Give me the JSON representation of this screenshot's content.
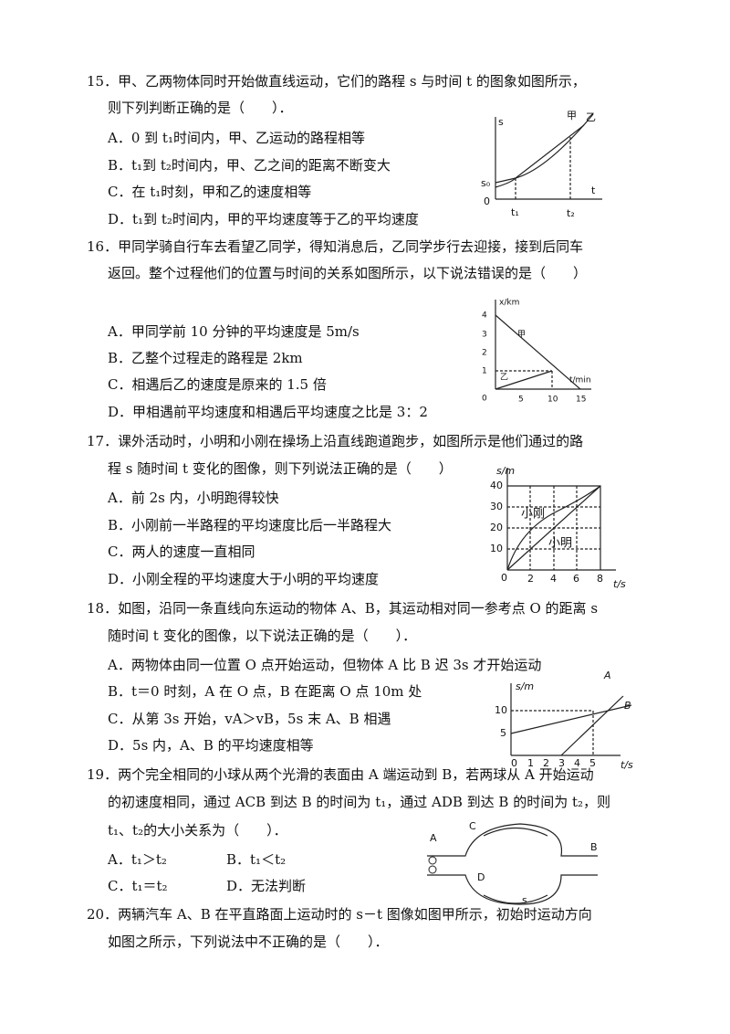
{
  "questions": [
    {
      "lines": [
        "15．甲、乙两物体同时开始做直线运动，它们的路程 s 与时间 t 的图象如图所示，",
        "则下列判断正确的是（　　）．"
      ],
      "options": [
        "A．0 到 t₁时间内，甲、乙运动的路程相等",
        "B．t₁到 t₂时间内，甲、乙之间的距离不断变大",
        "C．在 t₁时刻，甲和乙的速度相等",
        "D．t₁到 t₂时间内，甲的平均速度等于乙的平均速度"
      ],
      "figure": {
        "s": "s",
        "jia": "甲",
        "yi": "乙",
        "s0": "s₀",
        "origin": "0",
        "t": "t",
        "t1": "t₁",
        "t2": "t₂"
      }
    },
    {
      "lines": [
        "16．甲同学骑自行车去看望乙同学，得知消息后，乙同学步行去迎接，接到后同车",
        "返回。整个过程他们的位置与时间的关系如图所示，以下说法错误的是（　　）"
      ],
      "options": [
        "A．甲同学前 10 分钟的平均速度是 5m/s",
        "B．乙整个过程走的路程是 2km",
        "C．相遇后乙的速度是原来的 1.5 倍",
        "D．甲相遇前平均速度和相遇后平均速度之比是 3：2"
      ],
      "figure": {
        "ylabel": "x/km",
        "yticks": [
          "4",
          "3",
          "2",
          "1",
          "0"
        ],
        "xticks": [
          "5",
          "10",
          "15"
        ],
        "xlabel": "t/min",
        "jia": "甲",
        "yi": "乙"
      }
    },
    {
      "lines": [
        "17．课外活动时，小明和小刚在操场上沿直线跑道跑步，如图所示是他们通过的路",
        "程 s 随时间 t 变化的图像，则下列说法正确的是（　　）"
      ],
      "options": [
        "A．前 2s 内，小明跑得较快",
        "B．小刚前一半路程的平均速度比后一半路程大",
        "C．两人的速度一直相同",
        "D．小刚全程的平均速度大于小明的平均速度"
      ],
      "figure": {
        "ylabel": "s/m",
        "yticks": [
          "40",
          "30",
          "20",
          "10",
          "0"
        ],
        "xticks": [
          "2",
          "4",
          "6",
          "8"
        ],
        "xlabel": "t/s",
        "gang": "小刚",
        "ming": "小明"
      }
    },
    {
      "lines": [
        "18．如图，沿同一条直线向东运动的物体 A、B，其运动相对同一参考点 O 的距离 s",
        "随时间 t 变化的图像，以下说法正确的是（　　）．"
      ],
      "options": [
        "A．两物体由同一位置 O 点开始运动，但物体 A 比 B 迟 3s 才开始运动",
        "B．t＝0 时刻，A 在 O 点，B 在距离 O 点 10m 处",
        "C．从第 3s 开始，vA＞vB，5s 末 A、B 相遇",
        "D．5s 内，A、B 的平均速度相等"
      ],
      "figure": {
        "ylabel": "s/m",
        "yticks": [
          "10",
          "5"
        ],
        "xticks": [
          "0",
          "1",
          "2",
          "3",
          "4",
          "5"
        ],
        "xlabel": "t/s",
        "a": "A",
        "b": "B"
      }
    },
    {
      "lines": [
        "19．两个完全相同的小球从两个光滑的表面由 A 端运动到 B，若两球从 A 开始运动",
        "的初速度相同，通过 ACB 到达 B 的时间为 t₁，通过 ADB 到达 B 的时间为 t₂，则",
        "t₁、t₂的大小关系为（　　）．"
      ],
      "options": [
        "A．t₁＞t₂",
        "B．t₁＜t₂",
        "C．t₁＝t₂",
        "D．无法判断"
      ],
      "figure": {
        "a": "A",
        "b": "B",
        "c": "C",
        "d": "D",
        "s": "s"
      }
    },
    {
      "lines": [
        "20．两辆汽车 A、B 在平直路面上运动时的 s－t 图像如图甲所示，初始时运动方向",
        "如图之所示，下列说法中不正确的是（　　）．"
      ]
    }
  ]
}
